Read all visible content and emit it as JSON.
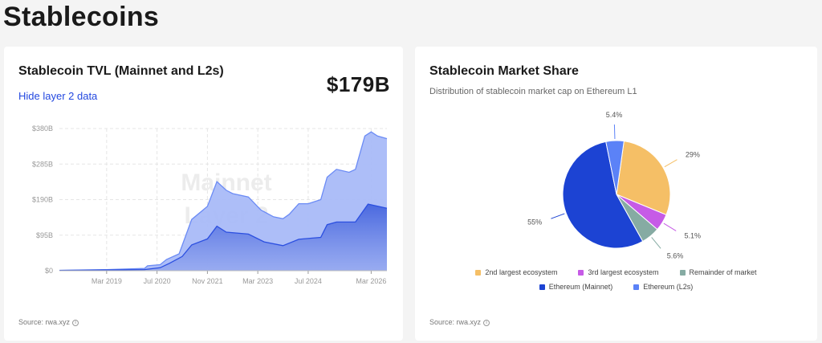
{
  "page": {
    "title": "Stablecoins"
  },
  "tvl_card": {
    "title": "Stablecoin TVL (Mainnet and L2s)",
    "toggle_label": "Hide layer 2 data",
    "headline_value": "$179B",
    "watermark": [
      "Mainnet",
      "Layer 2"
    ],
    "source": "Source: rwa.xyz",
    "source_icon": "info-icon"
  },
  "share_card": {
    "title": "Stablecoin Market Share",
    "subtitle": "Distribution of stablecoin market cap on Ethereum L1",
    "source": "Source: rwa.xyz",
    "source_icon": "info-icon"
  },
  "chart_data": [
    {
      "type": "area",
      "title": "Stablecoin TVL (Mainnet and L2s)",
      "xlabel": "",
      "ylabel": "",
      "xlim": [
        "2017-12",
        "2026-08"
      ],
      "ylim": [
        0,
        380
      ],
      "y_unit": "$B",
      "y_ticks": [
        "$0",
        "$95B",
        "$190B",
        "$285B",
        "$380B"
      ],
      "y_tick_values": [
        0,
        95,
        190,
        285,
        380
      ],
      "x_ticks": [
        "Mar 2019",
        "Jul 2020",
        "Nov 2021",
        "Mar 2023",
        "Jul 2024",
        "Mar 2026"
      ],
      "x_tick_dates": [
        "2019-03",
        "2020-07",
        "2021-11",
        "2023-03",
        "2024-07",
        "2026-03"
      ],
      "grid": true,
      "series": [
        {
          "name": "Layer 2",
          "color": "#6b8bf5",
          "fill": "#a9baf8",
          "points": [
            [
              "2017-12",
              1
            ],
            [
              "2019-03",
              3
            ],
            [
              "2020-03",
              6
            ],
            [
              "2020-04",
              13
            ],
            [
              "2020-08",
              16
            ],
            [
              "2020-10",
              30
            ],
            [
              "2021-02",
              45
            ],
            [
              "2021-06",
              137
            ],
            [
              "2021-11",
              172
            ],
            [
              "2022-02",
              238
            ],
            [
              "2022-05",
              215
            ],
            [
              "2022-07",
              206
            ],
            [
              "2022-12",
              197
            ],
            [
              "2023-04",
              162
            ],
            [
              "2023-08",
              144
            ],
            [
              "2023-11",
              139
            ],
            [
              "2024-01",
              151
            ],
            [
              "2024-04",
              179
            ],
            [
              "2024-07",
              179
            ],
            [
              "2024-11",
              190
            ],
            [
              "2025-01",
              250
            ],
            [
              "2025-04",
              271
            ],
            [
              "2025-08",
              263
            ],
            [
              "2025-10",
              271
            ],
            [
              "2026-01",
              360
            ],
            [
              "2026-03",
              371
            ],
            [
              "2026-05",
              360
            ],
            [
              "2026-08",
              353
            ]
          ]
        },
        {
          "name": "Mainnet",
          "color": "#2b4fe0",
          "fill": "#5a75e3",
          "points": [
            [
              "2017-12",
              0.7
            ],
            [
              "2020-03",
              3
            ],
            [
              "2020-08",
              8
            ],
            [
              "2020-11",
              20
            ],
            [
              "2021-03",
              38
            ],
            [
              "2021-06",
              69
            ],
            [
              "2021-11",
              85
            ],
            [
              "2022-02",
              119
            ],
            [
              "2022-05",
              103
            ],
            [
              "2022-12",
              98
            ],
            [
              "2023-05",
              77
            ],
            [
              "2023-11",
              67
            ],
            [
              "2024-04",
              84
            ],
            [
              "2024-08",
              87
            ],
            [
              "2024-11",
              89
            ],
            [
              "2025-01",
              123
            ],
            [
              "2025-04",
              130
            ],
            [
              "2025-10",
              130
            ],
            [
              "2026-02",
              178
            ],
            [
              "2026-08",
              167
            ]
          ]
        }
      ]
    },
    {
      "type": "pie",
      "title": "Stablecoin Market Share",
      "legend": "bottom",
      "slices": [
        {
          "name": "2nd largest ecosystem",
          "value": 29,
          "label": "29%",
          "color": "#f5bf66"
        },
        {
          "name": "3rd largest ecosystem",
          "value": 5.1,
          "label": "5.1%",
          "color": "#c65be6"
        },
        {
          "name": "Remainder of market",
          "value": 5.6,
          "label": "5.6%",
          "color": "#86aba3"
        },
        {
          "name": "Ethereum (Mainnet)",
          "value": 55,
          "label": "55%",
          "color": "#1c43d3"
        },
        {
          "name": "Ethereum (L2s)",
          "value": 5.4,
          "label": "5.4%",
          "color": "#5b82f7"
        }
      ]
    }
  ]
}
